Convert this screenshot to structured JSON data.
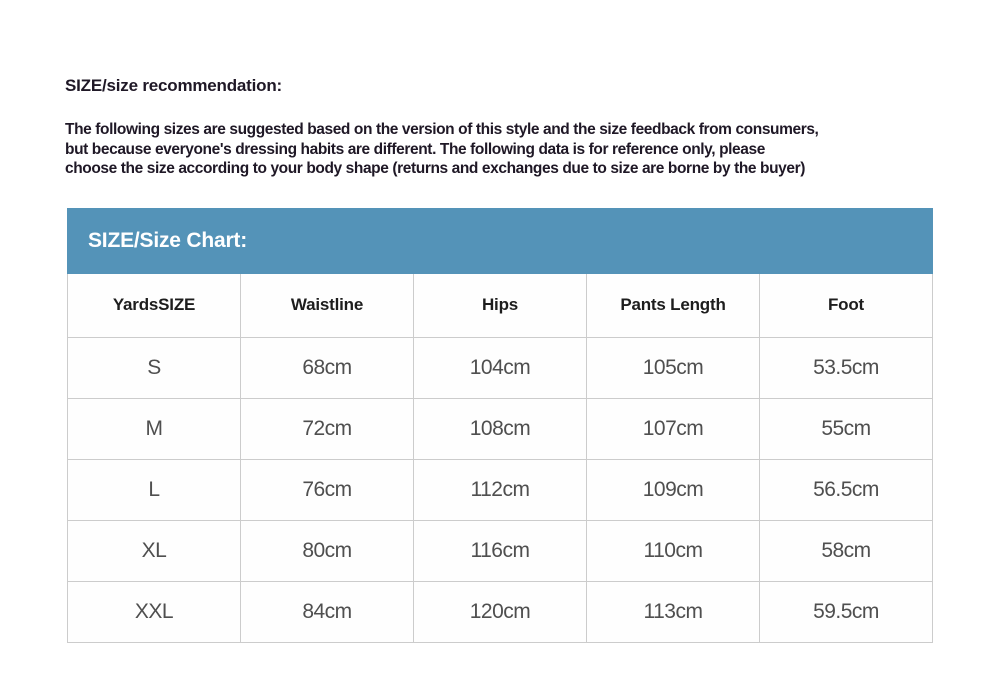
{
  "document": {
    "title": "SIZE/size recommendation:",
    "paragraph_lines": [
      "The following sizes are suggested based on the version of this style and the size feedback from consumers,",
      "but because everyone's dressing habits are different. The following data is for reference only, please",
      "choose the size according to your body shape (returns and exchanges due to size are borne by the buyer)"
    ]
  },
  "size_chart": {
    "banner_title": "SIZE/Size Chart:",
    "columns": [
      "YardsSIZE",
      "Waistline",
      "Hips",
      "Pants Length",
      "Foot"
    ],
    "rows": [
      {
        "size": "S",
        "values": [
          "68cm",
          "104cm",
          "105cm",
          "53.5cm"
        ]
      },
      {
        "size": "M",
        "values": [
          "72cm",
          "108cm",
          "107cm",
          "55cm"
        ]
      },
      {
        "size": "L",
        "values": [
          "76cm",
          "112cm",
          "109cm",
          "56.5cm"
        ]
      },
      {
        "size": "XL",
        "values": [
          "80cm",
          "116cm",
          "110cm",
          "58cm"
        ]
      },
      {
        "size": "XXL",
        "values": [
          "84cm",
          "120cm",
          "113cm",
          "59.5cm"
        ]
      }
    ]
  },
  "colors": {
    "banner_blue": "#5493b8",
    "border_gray": "#cccccc",
    "heading_text": "#1f1826",
    "data_text": "#4f4f4f"
  }
}
